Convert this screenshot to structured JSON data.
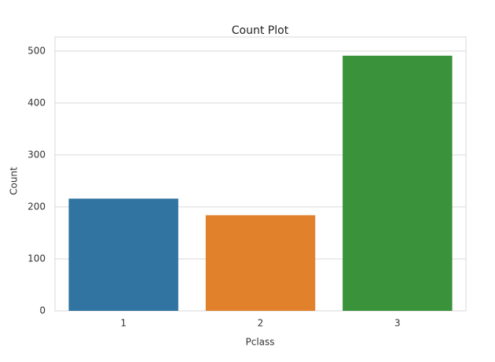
{
  "chart_data": {
    "type": "bar",
    "title": "Count Plot",
    "x_label": "Pclass",
    "y_label": "Count",
    "categories": [
      "1",
      "2",
      "3"
    ],
    "values": [
      216,
      184,
      491
    ],
    "colors": [
      "#3274a1",
      "#e1812c",
      "#3a923a"
    ],
    "ylim": [
      0,
      527
    ],
    "yticks": [
      0,
      100,
      200,
      300,
      400,
      500
    ],
    "grid": true
  }
}
